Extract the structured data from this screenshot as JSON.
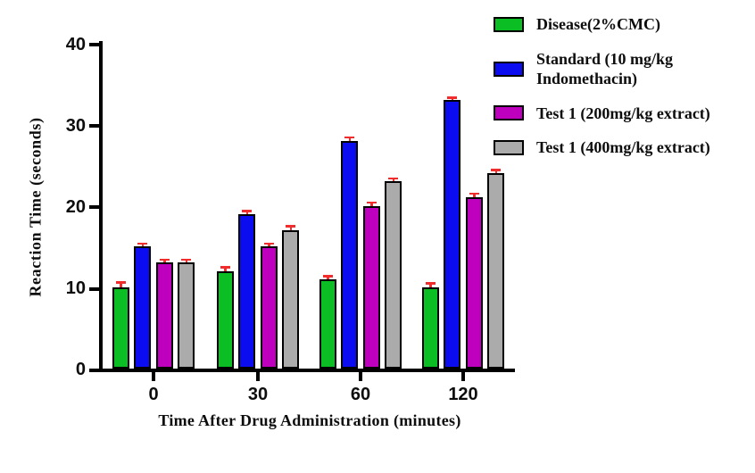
{
  "chart_data": {
    "type": "bar",
    "title": "",
    "xlabel": "Time After Drug Administration (minutes)",
    "ylabel": "Reaction Time (seconds)",
    "categories": [
      "0",
      "30",
      "60",
      "120"
    ],
    "y_tick_labels": [
      "40",
      "30",
      "20",
      "10",
      "0"
    ],
    "ylim": [
      0,
      40
    ],
    "grid": false,
    "legend_position": "top-right",
    "axis_color": "#000000",
    "error_bar_color": "#F02C2C",
    "series": [
      {
        "name": "Disease(2%CMC)",
        "color": "#0BBE24",
        "values": [
          10,
          12,
          11,
          10
        ],
        "errors": [
          0.7,
          0.6,
          0.5,
          0.6
        ]
      },
      {
        "name": "Standard (10 mg/kg Indomethacin)",
        "color": "#0C0CF0",
        "values": [
          15,
          19,
          28,
          33
        ],
        "errors": [
          0.5,
          0.5,
          0.5,
          0.4
        ]
      },
      {
        "name": "Test 1 (200mg/kg extract)",
        "color": "#BE00BE",
        "values": [
          13,
          15,
          20,
          21
        ],
        "errors": [
          0.5,
          0.5,
          0.5,
          0.6
        ]
      },
      {
        "name": "Test 1 (400mg/kg extract)",
        "color": "#ABABAB",
        "values": [
          13,
          17,
          23,
          24
        ],
        "errors": [
          0.5,
          0.6,
          0.5,
          0.5
        ]
      }
    ]
  }
}
